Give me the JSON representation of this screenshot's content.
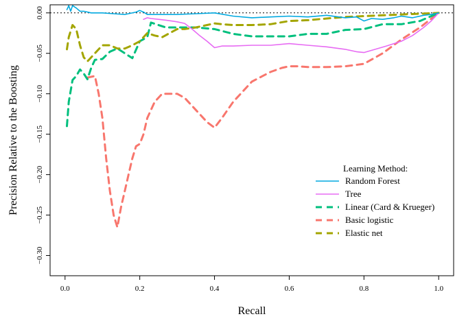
{
  "chart_data": {
    "type": "line",
    "title": "",
    "xlabel": "Recall",
    "ylabel": "Precision Relative to the Boosting",
    "xlim": [
      -0.04,
      1.04
    ],
    "ylim": [
      -0.325,
      0.01
    ],
    "xticks": [
      0.0,
      0.2,
      0.4,
      0.6,
      0.8,
      1.0
    ],
    "xtick_labels": [
      "0.0",
      "0.2",
      "0.4",
      "0.6",
      "0.8",
      "1.0"
    ],
    "yticks": [
      0.0,
      -0.05,
      -0.1,
      -0.15,
      -0.2,
      -0.25,
      -0.3
    ],
    "ytick_labels": [
      "0.00",
      "−0.05",
      "−0.10",
      "−0.15",
      "−0.20",
      "−0.25",
      "−0.30"
    ],
    "reference_line": 0,
    "legend": {
      "title": "Learning Method:",
      "position": "bottom-right"
    },
    "series": [
      {
        "name": "Random Forest",
        "color": "#00A9E0",
        "dash": "solid",
        "x": [
          0.005,
          0.01,
          0.015,
          0.02,
          0.03,
          0.04,
          0.05,
          0.07,
          0.1,
          0.13,
          0.16,
          0.19,
          0.2,
          0.21,
          0.22,
          0.25,
          0.3,
          0.35,
          0.4,
          0.45,
          0.5,
          0.55,
          0.6,
          0.65,
          0.7,
          0.75,
          0.78,
          0.8,
          0.82,
          0.85,
          0.88,
          0.9,
          0.93,
          0.96,
          0.98,
          1.0
        ],
        "y": [
          0.004,
          0.009,
          0.002,
          0.009,
          0.006,
          0.002,
          0.002,
          0.0,
          0.0,
          -0.001,
          -0.002,
          0.001,
          0.003,
          0.001,
          -0.002,
          -0.002,
          -0.002,
          -0.001,
          0.0,
          -0.004,
          -0.006,
          -0.005,
          -0.004,
          -0.005,
          -0.003,
          -0.006,
          -0.005,
          -0.01,
          -0.007,
          -0.008,
          -0.006,
          -0.004,
          -0.006,
          -0.003,
          -0.002,
          0.0
        ]
      },
      {
        "name": "Tree",
        "color": "#E76BF3",
        "dash": "solid",
        "x": [
          0.21,
          0.22,
          0.23,
          0.25,
          0.27,
          0.3,
          0.32,
          0.34,
          0.36,
          0.38,
          0.4,
          0.42,
          0.45,
          0.5,
          0.55,
          0.6,
          0.65,
          0.7,
          0.75,
          0.78,
          0.8,
          0.83,
          0.86,
          0.9,
          0.93,
          0.96,
          0.98,
          1.0
        ],
        "y": [
          -0.008,
          -0.006,
          -0.007,
          -0.008,
          -0.009,
          -0.011,
          -0.013,
          -0.02,
          -0.028,
          -0.035,
          -0.043,
          -0.041,
          -0.041,
          -0.04,
          -0.04,
          -0.038,
          -0.04,
          -0.042,
          -0.045,
          -0.048,
          -0.049,
          -0.045,
          -0.041,
          -0.035,
          -0.028,
          -0.018,
          -0.01,
          0.0
        ]
      },
      {
        "name": "Linear (Card & Krueger)",
        "color": "#00BF7D",
        "dash": "dashed",
        "x": [
          0.005,
          0.01,
          0.02,
          0.03,
          0.04,
          0.05,
          0.06,
          0.07,
          0.08,
          0.1,
          0.12,
          0.14,
          0.16,
          0.18,
          0.2,
          0.22,
          0.23,
          0.25,
          0.27,
          0.3,
          0.35,
          0.4,
          0.45,
          0.5,
          0.55,
          0.6,
          0.65,
          0.7,
          0.75,
          0.8,
          0.85,
          0.9,
          0.95,
          1.0
        ],
        "y": [
          -0.14,
          -0.11,
          -0.083,
          -0.078,
          -0.07,
          -0.075,
          -0.082,
          -0.068,
          -0.058,
          -0.057,
          -0.048,
          -0.044,
          -0.05,
          -0.056,
          -0.035,
          -0.03,
          -0.012,
          -0.015,
          -0.018,
          -0.018,
          -0.018,
          -0.02,
          -0.026,
          -0.029,
          -0.029,
          -0.029,
          -0.026,
          -0.026,
          -0.021,
          -0.02,
          -0.014,
          -0.014,
          -0.01,
          0.0
        ]
      },
      {
        "name": "Basic logistic",
        "color": "#F8766D",
        "dash": "dashed",
        "x": [
          0.06,
          0.08,
          0.09,
          0.1,
          0.11,
          0.12,
          0.13,
          0.14,
          0.15,
          0.16,
          0.17,
          0.18,
          0.19,
          0.2,
          0.21,
          0.22,
          0.24,
          0.26,
          0.28,
          0.3,
          0.32,
          0.34,
          0.36,
          0.38,
          0.4,
          0.42,
          0.45,
          0.5,
          0.55,
          0.58,
          0.6,
          0.62,
          0.65,
          0.7,
          0.75,
          0.8,
          0.85,
          0.9,
          0.95,
          1.0
        ],
        "y": [
          -0.08,
          -0.078,
          -0.1,
          -0.13,
          -0.18,
          -0.22,
          -0.25,
          -0.265,
          -0.24,
          -0.22,
          -0.2,
          -0.18,
          -0.165,
          -0.162,
          -0.15,
          -0.13,
          -0.11,
          -0.1,
          -0.1,
          -0.1,
          -0.105,
          -0.115,
          -0.125,
          -0.135,
          -0.142,
          -0.13,
          -0.11,
          -0.085,
          -0.073,
          -0.068,
          -0.066,
          -0.066,
          -0.067,
          -0.067,
          -0.066,
          -0.063,
          -0.05,
          -0.033,
          -0.018,
          0.0
        ]
      },
      {
        "name": "Elastic net",
        "color": "#A3A500",
        "dash": "dashed",
        "x": [
          0.005,
          0.01,
          0.02,
          0.03,
          0.04,
          0.05,
          0.06,
          0.08,
          0.1,
          0.12,
          0.14,
          0.16,
          0.18,
          0.2,
          0.22,
          0.24,
          0.26,
          0.28,
          0.3,
          0.32,
          0.35,
          0.38,
          0.4,
          0.42,
          0.45,
          0.5,
          0.55,
          0.6,
          0.65,
          0.7,
          0.75,
          0.8,
          0.85,
          0.9,
          0.95,
          1.0
        ],
        "y": [
          -0.045,
          -0.03,
          -0.015,
          -0.02,
          -0.04,
          -0.055,
          -0.06,
          -0.05,
          -0.04,
          -0.04,
          -0.044,
          -0.044,
          -0.04,
          -0.035,
          -0.025,
          -0.028,
          -0.03,
          -0.025,
          -0.02,
          -0.02,
          -0.018,
          -0.015,
          -0.013,
          -0.014,
          -0.015,
          -0.015,
          -0.014,
          -0.01,
          -0.009,
          -0.007,
          -0.005,
          -0.004,
          -0.003,
          -0.002,
          -0.001,
          0.0
        ]
      }
    ]
  }
}
